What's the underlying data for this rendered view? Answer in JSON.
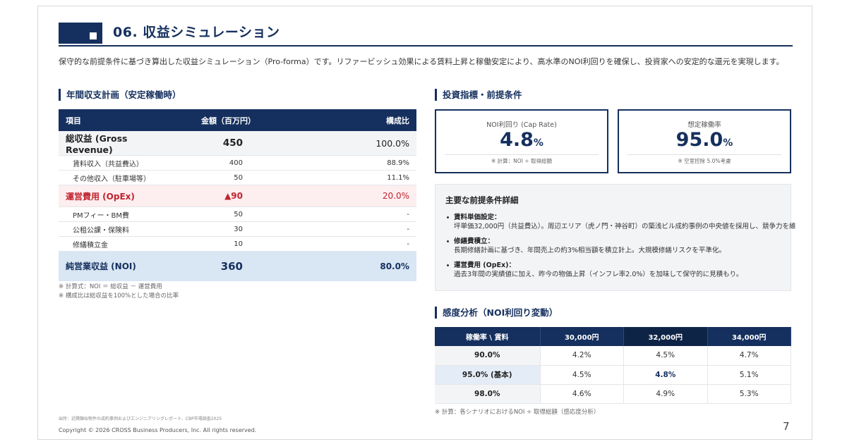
{
  "header": {
    "title": "06. 収益シミュレーション"
  },
  "intro": "保守的な前提条件に基づき算出した収益シミュレーション（Pro-forma）です。リファービッシュ効果による賃料上昇と稼働安定により、高水準のNOI利回りを確保し、投資家への安定的な還元を実現します。",
  "left": {
    "section_title": "年間収支計画（安定稼働時）",
    "columns": [
      "項目",
      "金額（百万円）",
      "構成比"
    ],
    "rows": [
      {
        "label": "総収益 (Gross Revenue)",
        "amount": "450",
        "ratio": "100.0%"
      },
      {
        "label": "賃料収入（共益費込）",
        "amount": "400",
        "ratio": "88.9%"
      },
      {
        "label": "その他収入（駐車場等）",
        "amount": "50",
        "ratio": "11.1%"
      },
      {
        "label": "運営費用 (OpEx)",
        "amount": "▲90",
        "ratio": "20.0%"
      },
      {
        "label": "PMフィー・BM費",
        "amount": "50",
        "ratio": "-"
      },
      {
        "label": "公租公課・保険料",
        "amount": "30",
        "ratio": "-"
      },
      {
        "label": "修繕積立金",
        "amount": "10",
        "ratio": "-"
      },
      {
        "label": "純営業収益 (NOI)",
        "amount": "360",
        "ratio": "80.0%"
      }
    ],
    "notes": [
      "※ 計算式：NOI ＝ 総収益 － 運営費用",
      "※ 構成比は総収益を100%とした場合の比率"
    ]
  },
  "right": {
    "section_title": "投資指標・前提条件",
    "kpis": [
      {
        "label": "NOI利回り (Cap Rate)",
        "value": "4.8",
        "unit": "%",
        "note": "※ 計算：NOI ÷ 取得総額"
      },
      {
        "label": "想定稼働率",
        "value": "95.0",
        "unit": "%",
        "note": "※ 空室控除 5.0%考慮"
      }
    ],
    "assumptions": {
      "title": "主要な前提条件詳細",
      "items": [
        {
          "head": "賃料単価設定：",
          "body": "坪単価32,000円（共益費込）。周辺エリア（虎ノ門・神谷町）の築浅ビル成約事例の中央値を採用し、競争力を維"
        },
        {
          "head": "修繕費積立：",
          "body": "長期修繕計画に基づき、年間売上の約3%相当額を積立計上。大規模修繕リスクを平準化。"
        },
        {
          "head": "運営費用 (OpEx)：",
          "body": "過去3年間の実績値に加え、昨今の物価上昇（インフレ率2.0%）を加味して保守的に見積もり。"
        }
      ]
    },
    "sensitivity": {
      "section_title": "感度分析（NOI利回り変動）",
      "corner": "稼働率 \\ 賃料",
      "columns": [
        "30,000円",
        "32,000円",
        "34,000円"
      ],
      "rows": [
        {
          "label": "90.0%",
          "values": [
            "4.2%",
            "4.5%",
            "4.7%"
          ]
        },
        {
          "label": "95.0% (基本)",
          "values": [
            "4.5%",
            "4.8%",
            "5.1%"
          ]
        },
        {
          "label": "98.0%",
          "values": [
            "4.6%",
            "4.9%",
            "5.3%"
          ]
        }
      ],
      "note": "※ 計算：各シナリオにおけるNOI ÷ 取得総額（感応度分析）"
    }
  },
  "footer": {
    "source": "出所：近隣類似物件の成約事例およびエンジニアリングレポート、CBP市場調査2025",
    "copyright": "Copyright © 2026 CROSS Business Producers, Inc. All rights reserved.",
    "page": "7"
  },
  "colors": {
    "navy": "#15305e",
    "opex_red": "#c0232c",
    "noi_bg": "#d9e6f3"
  }
}
